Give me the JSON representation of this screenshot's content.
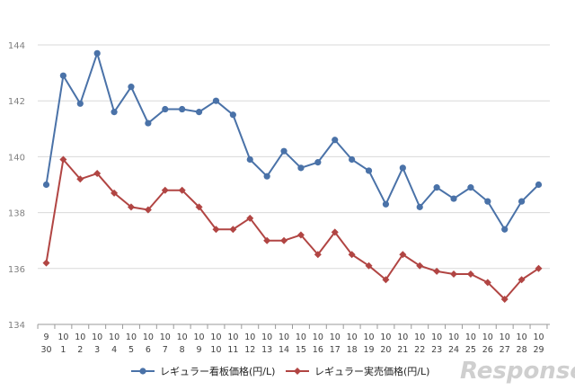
{
  "chart_data": {
    "type": "line",
    "x_top": [
      "9",
      "10",
      "10",
      "10",
      "10",
      "10",
      "10",
      "10",
      "10",
      "10",
      "10",
      "10",
      "10",
      "10",
      "10",
      "10",
      "10",
      "10",
      "10",
      "10",
      "10",
      "10",
      "10",
      "10",
      "10",
      "10",
      "10",
      "10",
      "10",
      "10"
    ],
    "x_bottom": [
      "30",
      "1",
      "2",
      "3",
      "4",
      "5",
      "6",
      "7",
      "8",
      "9",
      "10",
      "11",
      "12",
      "13",
      "14",
      "15",
      "16",
      "17",
      "18",
      "19",
      "20",
      "21",
      "22",
      "23",
      "24",
      "25",
      "26",
      "27",
      "28",
      "29"
    ],
    "ylim": [
      134,
      144
    ],
    "yticks": [
      "134",
      "136",
      "138",
      "140",
      "142",
      "144"
    ],
    "grid": true,
    "legend": "bottom",
    "series": [
      {
        "name": "レギュラー看板価格(円/L)",
        "color": "#4a72a8",
        "marker": "circle",
        "values": [
          139.0,
          142.9,
          141.9,
          143.7,
          141.6,
          142.5,
          141.2,
          141.7,
          141.7,
          141.6,
          142.0,
          141.5,
          139.9,
          139.3,
          140.2,
          139.6,
          139.8,
          140.6,
          139.9,
          139.5,
          138.3,
          139.6,
          138.2,
          138.9,
          138.5,
          138.9,
          138.4,
          137.4,
          138.4,
          139.0
        ]
      },
      {
        "name": "レギュラー実売価格(円/L)",
        "color": "#b14543",
        "marker": "diamond",
        "values": [
          136.2,
          139.9,
          139.2,
          139.4,
          138.7,
          138.2,
          138.1,
          138.8,
          138.8,
          138.2,
          137.4,
          137.4,
          137.8,
          137.0,
          137.0,
          137.2,
          136.5,
          137.3,
          136.5,
          136.1,
          135.6,
          136.5,
          136.1,
          135.9,
          135.8,
          135.8,
          135.5,
          134.9,
          135.6,
          136.0
        ]
      }
    ]
  },
  "watermark": "Response."
}
